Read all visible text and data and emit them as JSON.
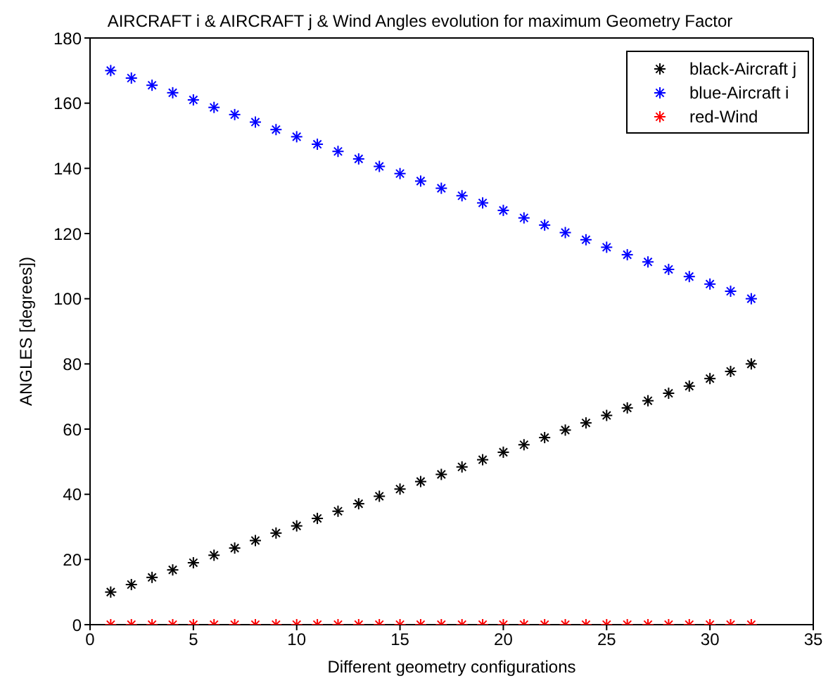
{
  "chart_data": {
    "type": "scatter",
    "title": "AIRCRAFT i & AIRCRAFT j & Wind Angles evolution for maximum Geometry Factor",
    "xlabel": "Different geometry configurations",
    "ylabel": "ANGLES [degrees])",
    "x": [
      1,
      2,
      3,
      4,
      5,
      6,
      7,
      8,
      9,
      10,
      11,
      12,
      13,
      14,
      15,
      16,
      17,
      18,
      19,
      20,
      21,
      22,
      23,
      24,
      25,
      26,
      27,
      28,
      29,
      30,
      31,
      32
    ],
    "series": [
      {
        "name": "black-Aircraft j",
        "color": "#000000",
        "values": [
          10,
          12.3,
          14.5,
          16.8,
          19.0,
          21.3,
          23.5,
          25.8,
          28.1,
          30.3,
          32.6,
          34.8,
          37.1,
          39.4,
          41.6,
          43.9,
          46.1,
          48.4,
          50.6,
          52.9,
          55.2,
          57.4,
          59.7,
          61.9,
          64.2,
          66.5,
          68.7,
          71.0,
          73.2,
          75.5,
          77.7,
          80
        ]
      },
      {
        "name": "blue-Aircraft i",
        "color": "#0000ff",
        "values": [
          170,
          167.7,
          165.5,
          163.2,
          161.0,
          158.7,
          156.5,
          154.2,
          151.9,
          149.7,
          147.4,
          145.2,
          142.9,
          140.6,
          138.4,
          136.1,
          133.9,
          131.6,
          129.4,
          127.1,
          124.8,
          122.6,
          120.3,
          118.1,
          115.8,
          113.5,
          111.3,
          109.0,
          106.8,
          104.5,
          102.3,
          100
        ]
      },
      {
        "name": "red-Wind",
        "color": "#ff0000",
        "values": [
          0,
          0,
          0,
          0,
          0,
          0,
          0,
          0,
          0,
          0,
          0,
          0,
          0,
          0,
          0,
          0,
          0,
          0,
          0,
          0,
          0,
          0,
          0,
          0,
          0,
          0,
          0,
          0,
          0,
          0,
          0,
          0
        ]
      }
    ],
    "xlim": [
      0,
      35
    ],
    "xticks": [
      0,
      5,
      10,
      15,
      20,
      25,
      30,
      35
    ],
    "ylim": [
      0,
      180
    ],
    "yticks": [
      0,
      20,
      40,
      60,
      80,
      100,
      120,
      140,
      160,
      180
    ],
    "grid": false,
    "legend": "top right",
    "marker": "cross"
  }
}
